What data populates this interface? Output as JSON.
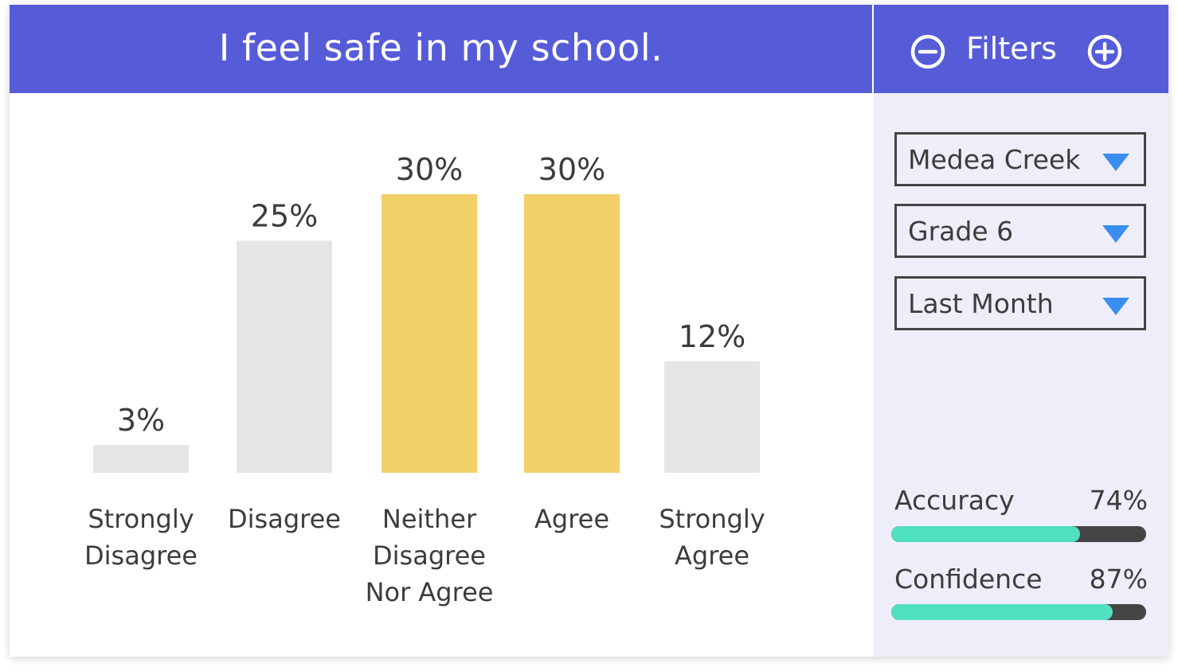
{
  "header": {
    "title": "I feel safe in my school."
  },
  "filters": {
    "label": "Filters",
    "remove_icon": "minus-circle-icon",
    "add_icon": "plus-circle-icon",
    "dropdowns": [
      {
        "value": "Medea Creek"
      },
      {
        "value": "Grade 6"
      },
      {
        "value": "Last Month"
      }
    ],
    "caret_icon": "triangle-down-icon",
    "caret_color": "#3a8ef0"
  },
  "metrics": [
    {
      "label": "Accuracy",
      "value_text": "74%",
      "value": 0.74
    },
    {
      "label": "Confidence",
      "value_text": "87%",
      "value": 0.87
    }
  ],
  "colors": {
    "header_bg": "#565cd8",
    "panel_bg": "#eeeefa",
    "bar_default": "#e5e5e5",
    "bar_highlight": "#f2cf69",
    "metric_fill": "#4fe0c0",
    "metric_track": "#454545"
  },
  "chart_data": {
    "type": "bar",
    "categories": [
      [
        "Strongly",
        "Disagree"
      ],
      [
        "Disagree"
      ],
      [
        "Neither",
        "Disagree",
        "Nor Agree"
      ],
      [
        "Agree"
      ],
      [
        "Strongly",
        "Agree"
      ]
    ],
    "values": [
      3,
      25,
      30,
      30,
      12
    ],
    "value_labels": [
      "3%",
      "25%",
      "30%",
      "30%",
      "12%"
    ],
    "highlighted": [
      false,
      false,
      true,
      true,
      false
    ],
    "ylim": [
      0,
      30
    ],
    "grid": false
  }
}
